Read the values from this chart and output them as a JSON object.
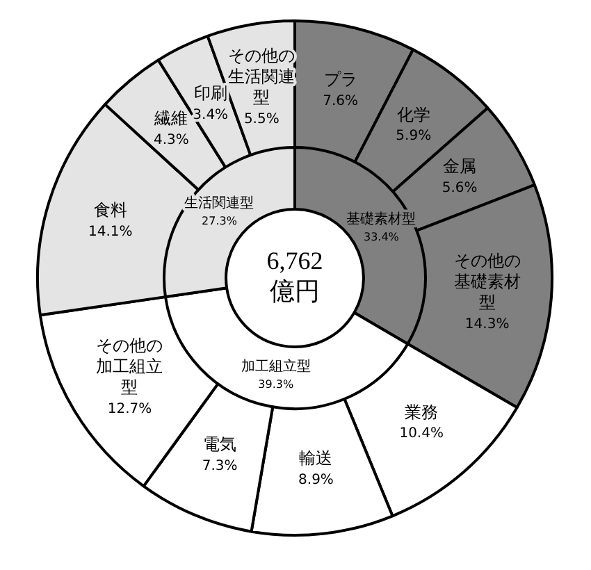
{
  "chart_data": [
    {
      "type": "donut",
      "annotations": [
        "6,762 億円"
      ],
      "categories": [
        "基礎素材型",
        "加工組立型",
        "生活関連型"
      ],
      "values": [
        33.4,
        39.3,
        27.3
      ],
      "value_labels": [
        "33.4%",
        "39.3%",
        "27.3%"
      ],
      "colors": [
        "#808080",
        "#ffffff",
        "#e4e4e4"
      ]
    },
    {
      "type": "donut",
      "categories": [
        "プラ",
        "化学",
        "金属",
        "その他の基礎素材型",
        "業務",
        "輸送",
        "電気",
        "その他の加工組立型",
        "食料",
        "繊維",
        "印刷",
        "その他の生活関連型"
      ],
      "values": [
        7.6,
        5.9,
        5.6,
        14.3,
        10.4,
        8.9,
        7.3,
        12.7,
        14.1,
        4.3,
        3.4,
        5.5
      ],
      "value_labels": [
        "7.6%",
        "5.9%",
        "5.6%",
        "14.3%",
        "10.4%",
        "8.9%",
        "7.3%",
        "12.7%",
        "14.1%",
        "4.3%",
        "3.4%",
        "5.5%"
      ],
      "colors": [
        "#808080",
        "#808080",
        "#808080",
        "#808080",
        "#ffffff",
        "#ffffff",
        "#ffffff",
        "#ffffff",
        "#e4e4e4",
        "#e4e4e4",
        "#e4e4e4",
        "#e4e4e4"
      ]
    }
  ]
}
